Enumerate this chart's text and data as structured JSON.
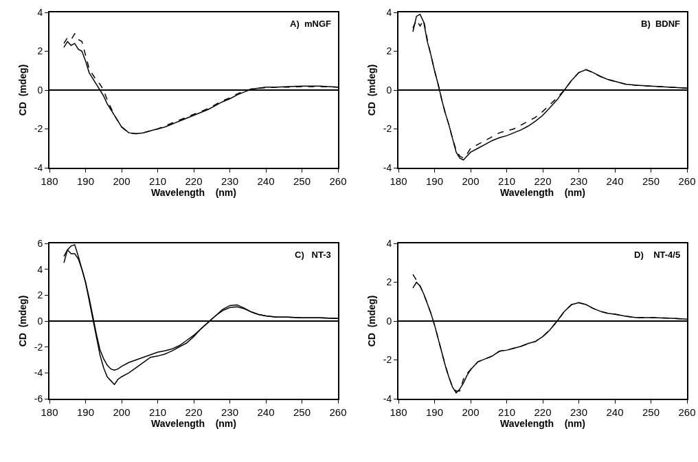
{
  "chart_data": [
    {
      "type": "line",
      "title": "A)  mNGF",
      "xlabel": "Wavelength    (nm)",
      "ylabel": "CD  (mdeg)",
      "xlim": [
        180,
        260
      ],
      "xticks": [
        180,
        190,
        200,
        210,
        220,
        230,
        240,
        250,
        260
      ],
      "ylim": [
        -4,
        4
      ],
      "yticks": [
        -4,
        -2,
        0,
        2,
        4
      ],
      "x": [
        184,
        185,
        186,
        187,
        188,
        189,
        190,
        191,
        192,
        193,
        194,
        195,
        196,
        197,
        198,
        199,
        200,
        202,
        204,
        206,
        208,
        210,
        212,
        214,
        216,
        218,
        220,
        222,
        224,
        226,
        228,
        230,
        232,
        234,
        236,
        238,
        240,
        243,
        246,
        250,
        255,
        260
      ],
      "series": [
        {
          "color": "#000000",
          "line_style": "solid",
          "values": [
            2.2,
            2.5,
            2.3,
            2.4,
            2.1,
            2.0,
            1.5,
            0.9,
            0.6,
            0.3,
            0.0,
            -0.3,
            -0.7,
            -1.0,
            -1.3,
            -1.6,
            -1.9,
            -2.2,
            -2.25,
            -2.2,
            -2.1,
            -2.0,
            -1.9,
            -1.75,
            -1.6,
            -1.45,
            -1.3,
            -1.15,
            -1.0,
            -0.8,
            -0.6,
            -0.45,
            -0.25,
            -0.1,
            0.05,
            0.1,
            0.15,
            0.15,
            0.18,
            0.2,
            0.2,
            0.15
          ]
        },
        {
          "color": "#000000",
          "line_style": "dashed",
          "values": [
            2.4,
            2.7,
            2.6,
            2.9,
            2.6,
            2.5,
            1.8,
            1.1,
            0.8,
            0.5,
            0.3,
            0.0,
            -0.5,
            -0.9,
            -1.3,
            -1.6,
            -1.9,
            -2.2,
            -2.25,
            -2.2,
            -2.1,
            -2.0,
            -1.85,
            -1.7,
            -1.55,
            -1.4,
            -1.25,
            -1.1,
            -0.95,
            -0.75,
            -0.55,
            -0.4,
            -0.2,
            -0.05,
            0.05,
            0.1,
            0.12,
            0.15,
            0.15,
            0.18,
            0.18,
            0.15
          ]
        }
      ],
      "ref_lines": [
        {
          "axis": "y",
          "value": 0,
          "color": "#000000",
          "line_style": "solid"
        }
      ]
    },
    {
      "type": "line",
      "title": "B)  BDNF",
      "xlabel": "Wavelength    (nm)",
      "ylabel": "CD  (mdeg)",
      "xlim": [
        180,
        260
      ],
      "xticks": [
        180,
        190,
        200,
        210,
        220,
        230,
        240,
        250,
        260
      ],
      "ylim": [
        -4,
        4
      ],
      "yticks": [
        -4,
        -2,
        0,
        2,
        4
      ],
      "x": [
        184,
        185,
        186,
        187,
        188,
        189,
        190,
        191,
        192,
        193,
        194,
        195,
        196,
        197,
        198,
        199,
        200,
        202,
        204,
        206,
        208,
        210,
        212,
        214,
        216,
        218,
        220,
        222,
        224,
        226,
        228,
        230,
        232,
        234,
        236,
        238,
        240,
        243,
        246,
        250,
        255,
        260
      ],
      "series": [
        {
          "color": "#000000",
          "line_style": "solid",
          "values": [
            3.0,
            3.8,
            3.9,
            3.5,
            2.5,
            1.8,
            1.0,
            0.3,
            -0.5,
            -1.2,
            -1.8,
            -2.5,
            -3.2,
            -3.5,
            -3.6,
            -3.4,
            -3.2,
            -3.0,
            -2.8,
            -2.6,
            -2.45,
            -2.35,
            -2.2,
            -2.05,
            -1.85,
            -1.6,
            -1.3,
            -0.9,
            -0.5,
            0.0,
            0.5,
            0.9,
            1.05,
            0.9,
            0.7,
            0.55,
            0.45,
            0.3,
            0.25,
            0.2,
            0.15,
            0.1
          ]
        },
        {
          "color": "#000000",
          "line_style": "dashed",
          "values": [
            3.2,
            3.6,
            3.3,
            3.6,
            2.6,
            1.8,
            1.0,
            0.3,
            -0.5,
            -1.2,
            -1.8,
            -2.5,
            -3.1,
            -3.4,
            -3.5,
            -3.3,
            -3.0,
            -2.8,
            -2.6,
            -2.4,
            -2.2,
            -2.1,
            -2.0,
            -1.8,
            -1.6,
            -1.4,
            -1.1,
            -0.75,
            -0.4,
            0.0,
            0.5,
            0.9,
            1.05,
            0.9,
            0.7,
            0.55,
            0.45,
            0.3,
            0.25,
            0.2,
            0.15,
            0.1
          ]
        }
      ],
      "ref_lines": [
        {
          "axis": "y",
          "value": 0,
          "color": "#000000",
          "line_style": "solid"
        }
      ]
    },
    {
      "type": "line",
      "title": "C)   NT-3",
      "xlabel": "Wavelength    (nm)",
      "ylabel": "CD  (mdeg)",
      "xlim": [
        180,
        260
      ],
      "xticks": [
        180,
        190,
        200,
        210,
        220,
        230,
        240,
        250,
        260
      ],
      "ylim": [
        -6,
        6
      ],
      "yticks": [
        -6,
        -4,
        -2,
        0,
        2,
        4,
        6
      ],
      "x": [
        184,
        185,
        186,
        187,
        188,
        189,
        190,
        191,
        192,
        193,
        194,
        195,
        196,
        197,
        198,
        199,
        200,
        202,
        204,
        206,
        208,
        210,
        212,
        214,
        216,
        218,
        220,
        222,
        224,
        226,
        228,
        230,
        232,
        234,
        236,
        238,
        240,
        243,
        246,
        250,
        255,
        260
      ],
      "series": [
        {
          "color": "#000000",
          "line_style": "solid",
          "values": [
            4.5,
            5.5,
            5.8,
            5.9,
            5.0,
            4.0,
            3.0,
            1.6,
            0.2,
            -1.2,
            -2.6,
            -3.6,
            -4.3,
            -4.6,
            -4.9,
            -4.5,
            -4.3,
            -4.0,
            -3.6,
            -3.2,
            -2.8,
            -2.7,
            -2.55,
            -2.3,
            -2.0,
            -1.7,
            -1.2,
            -0.6,
            -0.1,
            0.4,
            0.9,
            1.2,
            1.25,
            1.0,
            0.7,
            0.5,
            0.4,
            0.3,
            0.3,
            0.25,
            0.25,
            0.2
          ]
        },
        {
          "color": "#000000",
          "line_style": "solid",
          "values": [
            5.0,
            5.5,
            5.2,
            5.2,
            4.8,
            4.0,
            3.0,
            1.8,
            0.4,
            -1.0,
            -2.2,
            -2.9,
            -3.4,
            -3.7,
            -3.8,
            -3.7,
            -3.5,
            -3.2,
            -3.0,
            -2.8,
            -2.6,
            -2.4,
            -2.3,
            -2.15,
            -1.9,
            -1.5,
            -1.1,
            -0.6,
            -0.1,
            0.4,
            0.8,
            1.05,
            1.1,
            0.95,
            0.7,
            0.5,
            0.4,
            0.3,
            0.3,
            0.25,
            0.25,
            0.2
          ]
        }
      ],
      "ref_lines": [
        {
          "axis": "y",
          "value": 0,
          "color": "#000000",
          "line_style": "solid"
        }
      ]
    },
    {
      "type": "line",
      "title": "D)    NT-4/5",
      "xlabel": "Wavelength    (nm)",
      "ylabel": "CD  (mdeg)",
      "xlim": [
        180,
        260
      ],
      "xticks": [
        180,
        190,
        200,
        210,
        220,
        230,
        240,
        250,
        260
      ],
      "ylim": [
        -4,
        4
      ],
      "yticks": [
        -4,
        -2,
        0,
        2,
        4
      ],
      "x": [
        184,
        185,
        186,
        187,
        188,
        189,
        190,
        191,
        192,
        193,
        194,
        195,
        196,
        197,
        198,
        199,
        200,
        202,
        204,
        206,
        208,
        210,
        212,
        214,
        216,
        218,
        220,
        222,
        224,
        226,
        228,
        230,
        232,
        234,
        236,
        238,
        240,
        243,
        246,
        250,
        255,
        260
      ],
      "series": [
        {
          "color": "#000000",
          "line_style": "solid",
          "values": [
            1.7,
            2.0,
            1.8,
            1.4,
            0.9,
            0.4,
            -0.2,
            -0.9,
            -1.6,
            -2.3,
            -2.9,
            -3.4,
            -3.7,
            -3.5,
            -3.2,
            -2.8,
            -2.5,
            -2.1,
            -1.95,
            -1.8,
            -1.55,
            -1.5,
            -1.4,
            -1.3,
            -1.15,
            -1.05,
            -0.8,
            -0.45,
            0.0,
            0.5,
            0.85,
            0.95,
            0.85,
            0.65,
            0.5,
            0.4,
            0.35,
            0.25,
            0.18,
            0.18,
            0.15,
            0.1
          ]
        },
        {
          "color": "#000000",
          "line_style": "dashed",
          "values": [
            2.4,
            2.1,
            1.8,
            1.4,
            0.9,
            0.4,
            -0.2,
            -0.9,
            -1.6,
            -2.3,
            -2.9,
            -3.4,
            -3.6,
            -3.6,
            -3.0,
            -2.7,
            -2.5,
            -2.1,
            -1.95,
            -1.8,
            -1.55,
            -1.5,
            -1.4,
            -1.3,
            -1.15,
            -1.05,
            -0.8,
            -0.45,
            0.0,
            0.5,
            0.85,
            0.95,
            0.85,
            0.65,
            0.5,
            0.4,
            0.35,
            0.25,
            0.18,
            0.18,
            0.15,
            0.1
          ]
        }
      ],
      "ref_lines": [
        {
          "axis": "y",
          "value": 0,
          "color": "#000000",
          "line_style": "solid"
        }
      ]
    }
  ]
}
